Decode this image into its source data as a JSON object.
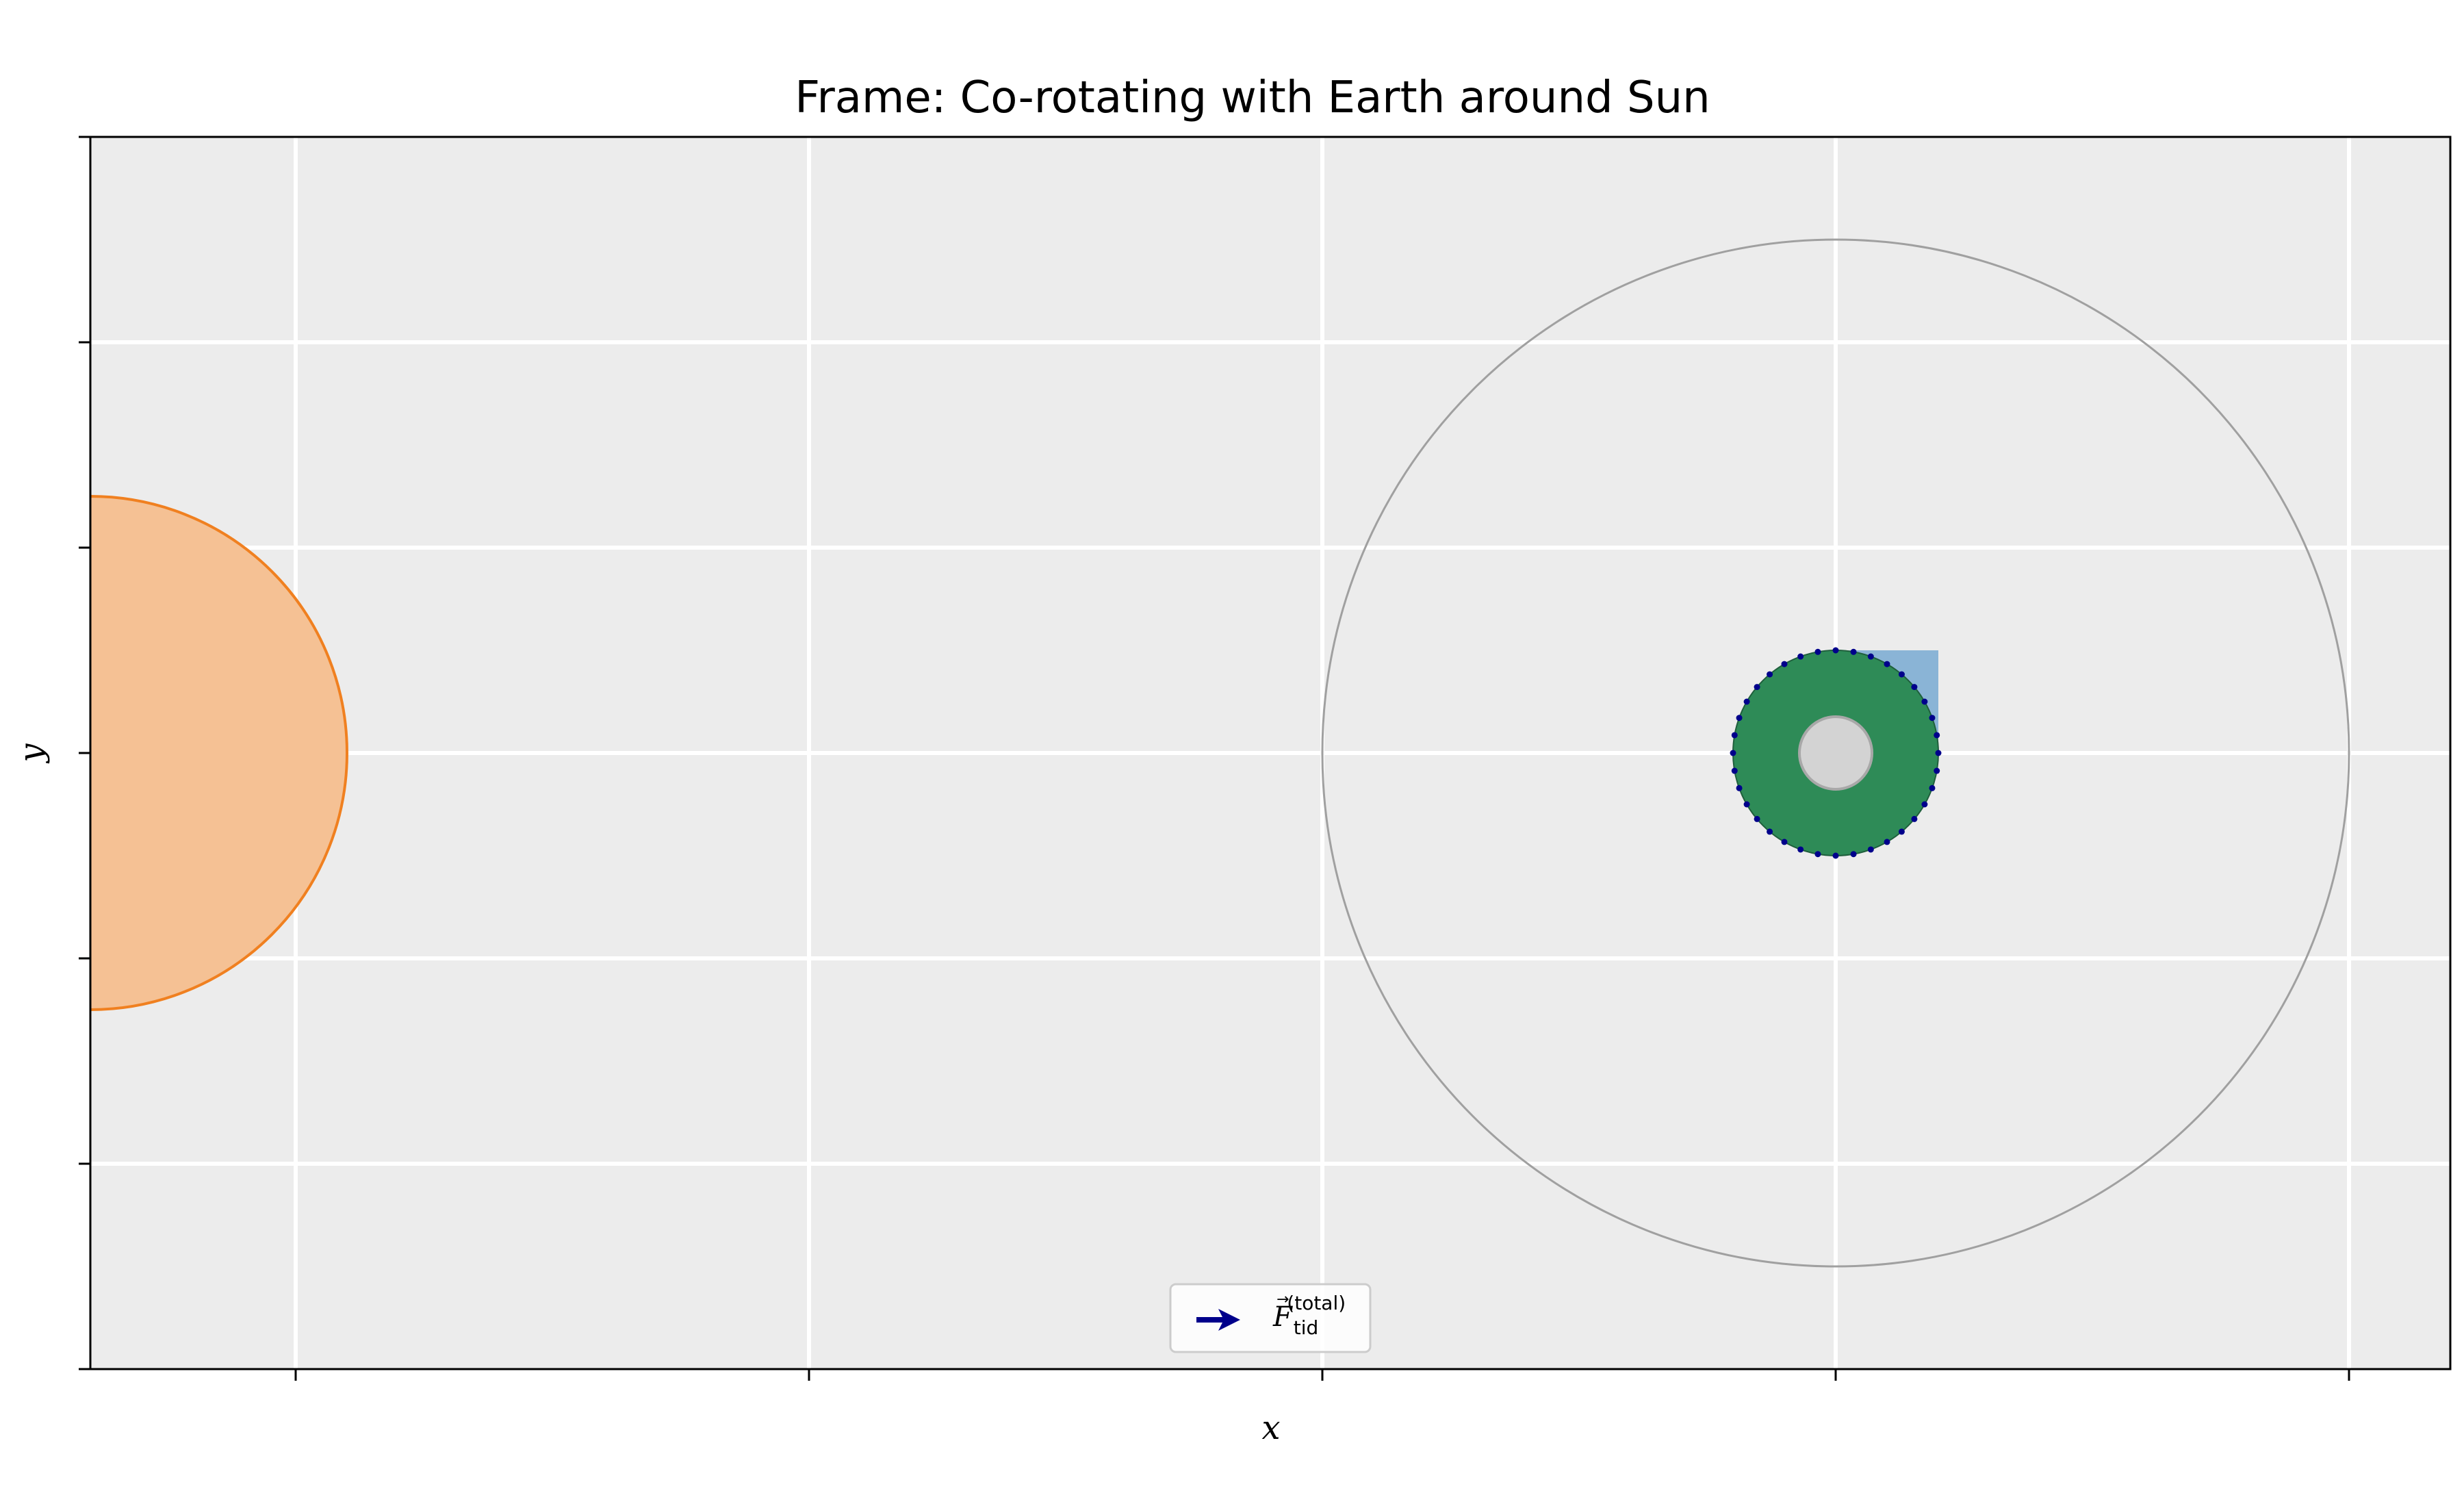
{
  "title": "Frame: Co-rotating with Earth around Sun",
  "xlabel": "x",
  "ylabel": "y",
  "legend": {
    "symbol": "F",
    "subscript": "tid",
    "superscript": "(total)",
    "color": "#00008b"
  },
  "colors": {
    "axes_bg": "#ececec",
    "grid": "#ffffff",
    "sun_fill": "#f5c194",
    "sun_edge": "#f08020",
    "orbit": "#a0a0a0",
    "earth": "#2e8b57",
    "ocean_patch": "#8ab4d6",
    "core": "#d3d3d3",
    "surface_points": "#00008b"
  }
}
